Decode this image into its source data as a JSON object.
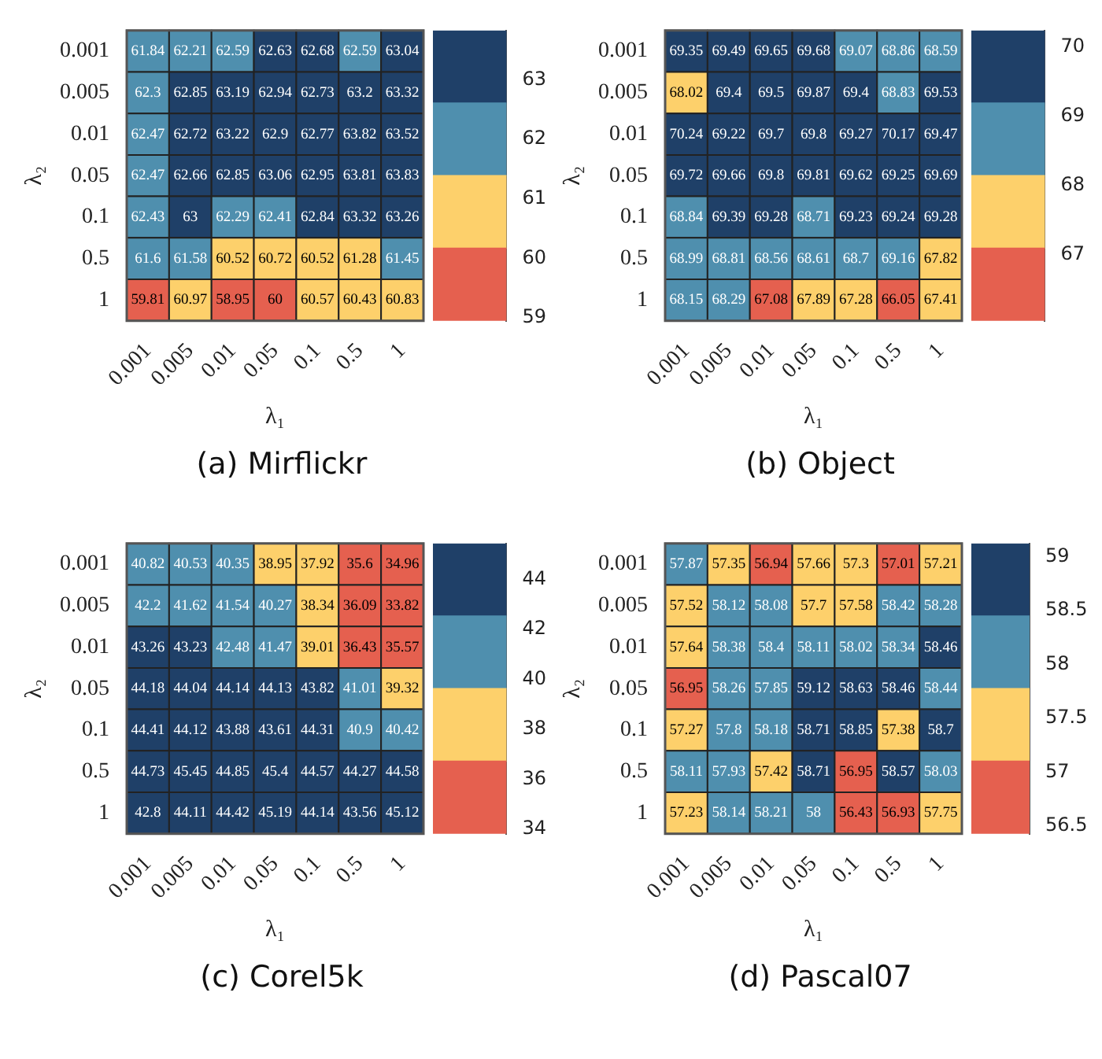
{
  "chart_data": [
    {
      "type": "heatmap",
      "title": "(a) Mirflickr",
      "xlabel": "λ₁",
      "ylabel": "λ₂",
      "categories": [
        "0.001",
        "0.005",
        "0.01",
        "0.05",
        "0.1",
        "0.5",
        "1"
      ],
      "y_categories": [
        "0.001",
        "0.005",
        "0.01",
        "0.05",
        "0.1",
        "0.5",
        "1"
      ],
      "cells": [
        [
          61.84,
          62.21,
          62.59,
          62.63,
          62.68,
          62.59,
          63.04
        ],
        [
          62.3,
          62.85,
          63.19,
          62.94,
          62.73,
          63.2,
          63.32
        ],
        [
          62.47,
          62.72,
          63.22,
          62.9,
          62.77,
          63.82,
          63.52
        ],
        [
          62.47,
          62.66,
          62.85,
          63.06,
          62.95,
          63.81,
          63.83
        ],
        [
          62.43,
          63,
          62.29,
          62.41,
          62.84,
          63.32,
          63.26
        ],
        [
          61.6,
          61.58,
          60.52,
          60.72,
          60.52,
          61.28,
          61.45
        ],
        [
          59.81,
          60.97,
          58.95,
          60,
          60.57,
          60.43,
          60.83
        ]
      ],
      "clim": [
        58.95,
        63.83
      ],
      "cticks": [
        59,
        60,
        61,
        62,
        63
      ],
      "colors": [
        "#e5604f",
        "#fdd06b",
        "#4f8fae",
        "#1f4068"
      ],
      "data_labels": true
    },
    {
      "type": "heatmap",
      "title": "(b) Object",
      "xlabel": "λ₁",
      "ylabel": "λ₂",
      "categories": [
        "0.001",
        "0.005",
        "0.01",
        "0.05",
        "0.1",
        "0.5",
        "1"
      ],
      "y_categories": [
        "0.001",
        "0.005",
        "0.01",
        "0.05",
        "0.1",
        "0.5",
        "1"
      ],
      "cells": [
        [
          69.35,
          69.49,
          69.65,
          69.68,
          69.07,
          68.86,
          68.59
        ],
        [
          68.02,
          69.4,
          69.5,
          69.87,
          69.4,
          68.83,
          69.53
        ],
        [
          70.24,
          69.22,
          69.7,
          69.8,
          69.27,
          70.17,
          69.47
        ],
        [
          69.72,
          69.66,
          69.8,
          69.81,
          69.62,
          69.25,
          69.69
        ],
        [
          68.84,
          69.39,
          69.28,
          68.71,
          69.23,
          69.24,
          69.28
        ],
        [
          68.99,
          68.81,
          68.56,
          68.61,
          68.7,
          69.16,
          67.82
        ],
        [
          68.15,
          68.29,
          67.08,
          67.89,
          67.28,
          66.05,
          67.41
        ]
      ],
      "clim": [
        66.05,
        70.24
      ],
      "cticks": [
        67,
        68,
        69,
        70
      ],
      "colors": [
        "#e5604f",
        "#fdd06b",
        "#4f8fae",
        "#1f4068"
      ],
      "data_labels": true
    },
    {
      "type": "heatmap",
      "title": "(c) Corel5k",
      "xlabel": "λ₁",
      "ylabel": "λ₂",
      "categories": [
        "0.001",
        "0.005",
        "0.01",
        "0.05",
        "0.1",
        "0.5",
        "1"
      ],
      "y_categories": [
        "0.001",
        "0.005",
        "0.01",
        "0.05",
        "0.1",
        "0.5",
        "1"
      ],
      "cells": [
        [
          40.82,
          40.53,
          40.35,
          38.95,
          37.92,
          35.6,
          34.96
        ],
        [
          42.2,
          41.62,
          41.54,
          40.27,
          38.34,
          36.09,
          33.82
        ],
        [
          43.26,
          43.23,
          42.48,
          41.47,
          39.01,
          36.43,
          35.57
        ],
        [
          44.18,
          44.04,
          44.14,
          44.13,
          43.82,
          41.01,
          39.32
        ],
        [
          44.41,
          44.12,
          43.88,
          43.61,
          44.31,
          40.9,
          40.42
        ],
        [
          44.73,
          45.45,
          44.85,
          45.4,
          44.57,
          44.27,
          44.58
        ],
        [
          42.8,
          44.11,
          44.42,
          45.19,
          44.14,
          43.56,
          45.12
        ]
      ],
      "clim": [
        33.82,
        45.45
      ],
      "cticks": [
        34,
        36,
        38,
        40,
        42,
        44
      ],
      "colors": [
        "#e5604f",
        "#fdd06b",
        "#4f8fae",
        "#1f4068"
      ],
      "data_labels": true
    },
    {
      "type": "heatmap",
      "title": "(d) Pascal07",
      "xlabel": "λ₁",
      "ylabel": "λ₂",
      "categories": [
        "0.001",
        "0.005",
        "0.01",
        "0.05",
        "0.1",
        "0.5",
        "1"
      ],
      "y_categories": [
        "0.001",
        "0.005",
        "0.01",
        "0.05",
        "0.1",
        "0.5",
        "1"
      ],
      "cells": [
        [
          57.87,
          57.35,
          56.94,
          57.66,
          57.3,
          57.01,
          57.21
        ],
        [
          57.52,
          58.12,
          58.08,
          57.7,
          57.58,
          58.42,
          58.28
        ],
        [
          57.64,
          58.38,
          58.4,
          58.11,
          58.02,
          58.34,
          58.46
        ],
        [
          56.95,
          58.26,
          57.85,
          59.12,
          58.63,
          58.46,
          58.44
        ],
        [
          57.27,
          57.8,
          58.18,
          58.71,
          58.85,
          57.38,
          58.7
        ],
        [
          58.11,
          57.93,
          57.42,
          58.71,
          56.95,
          58.57,
          58.03
        ],
        [
          57.23,
          58.14,
          58.21,
          58,
          56.43,
          56.93,
          57.75
        ]
      ],
      "clim": [
        56.43,
        59.12
      ],
      "cticks": [
        56.5,
        57,
        57.5,
        58,
        58.5,
        59
      ],
      "colors": [
        "#e5604f",
        "#fdd06b",
        "#4f8fae",
        "#1f4068"
      ],
      "data_labels": true
    }
  ]
}
